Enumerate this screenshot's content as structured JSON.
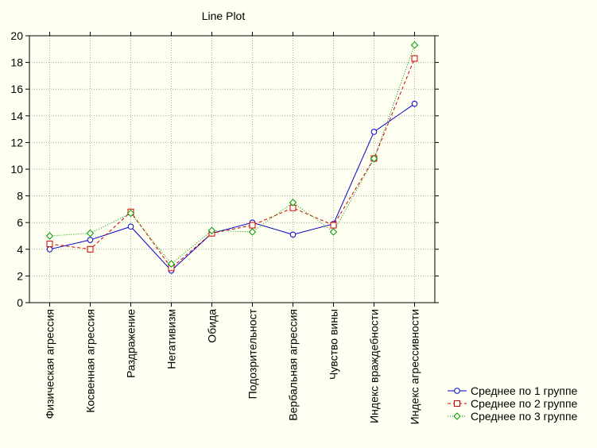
{
  "chart_data": {
    "type": "line",
    "title": "Line Plot",
    "xlabel": "",
    "ylabel": "",
    "ylim": [
      0,
      20
    ],
    "yticks": [
      0,
      2,
      4,
      6,
      8,
      10,
      12,
      14,
      16,
      18,
      20
    ],
    "grid": true,
    "legend_position": "bottom-right",
    "categories": [
      "Физическая агрессия",
      "Косвенная агрессия",
      "Раздражение",
      "Негативизм",
      "Обида",
      "Подозрительност",
      "Вербальная агрессия",
      "Чувство вины",
      "Индекс враждебности",
      "Индекс агрессивности"
    ],
    "series": [
      {
        "name": "Среднее по 1 группе",
        "color": "#0000cc",
        "marker": "circle",
        "line": "solid",
        "values": [
          4.0,
          4.7,
          5.7,
          2.4,
          5.2,
          6.0,
          5.1,
          5.9,
          12.8,
          14.9
        ]
      },
      {
        "name": "Среднее по 2 группе",
        "color": "#cc0000",
        "marker": "square",
        "line": "dashed",
        "values": [
          4.4,
          4.0,
          6.8,
          2.6,
          5.2,
          5.8,
          7.1,
          5.8,
          10.8,
          18.3
        ]
      },
      {
        "name": "Среднее по 3 группе",
        "color": "#009900",
        "marker": "diamond",
        "line": "dotted",
        "values": [
          5.0,
          5.2,
          6.7,
          2.9,
          5.4,
          5.3,
          7.5,
          5.3,
          10.8,
          19.3
        ]
      }
    ]
  }
}
